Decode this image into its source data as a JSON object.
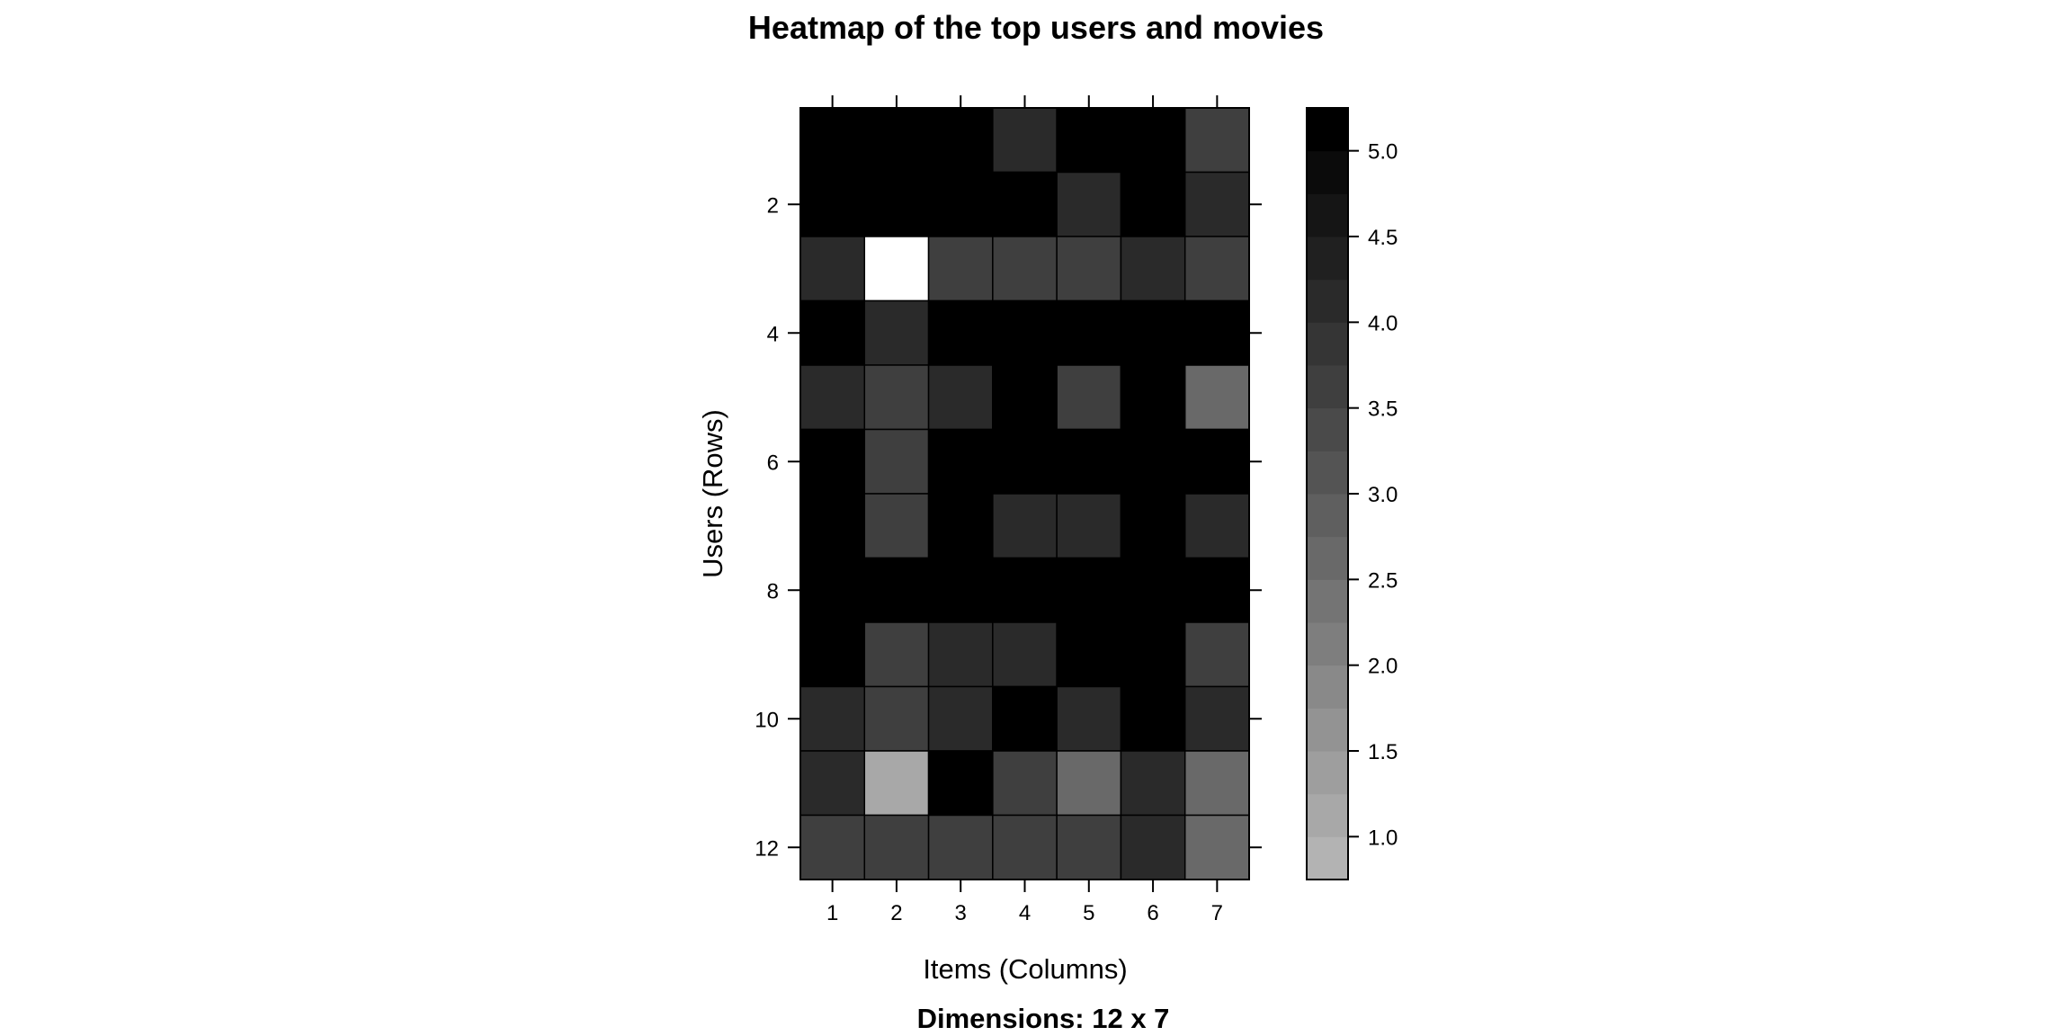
{
  "chart_data": {
    "type": "heatmap",
    "title": "Heatmap of the top users and movies",
    "subtitle": "Dimensions: 12 x 7",
    "xlabel": "Items (Columns)",
    "ylabel": "Users (Rows)",
    "x_ticks": [
      "1",
      "2",
      "3",
      "4",
      "5",
      "6",
      "7"
    ],
    "y_ticks": [
      "2",
      "4",
      "6",
      "8",
      "10",
      "12"
    ],
    "rows": 12,
    "columns": 7,
    "values": [
      [
        5,
        5,
        5,
        4,
        5,
        5,
        3.5
      ],
      [
        5,
        5,
        5,
        5,
        4,
        5,
        4
      ],
      [
        4,
        0.5,
        3.5,
        3.5,
        3.5,
        4,
        3.5
      ],
      [
        5,
        4,
        5,
        5,
        5,
        5,
        5
      ],
      [
        4,
        3.5,
        4,
        5,
        3.5,
        5,
        2.5
      ],
      [
        5,
        3.5,
        5,
        5,
        5,
        5,
        5
      ],
      [
        5,
        3.5,
        5,
        4,
        4,
        5,
        4
      ],
      [
        5,
        5,
        5,
        5,
        5,
        5,
        5
      ],
      [
        5,
        3.5,
        4,
        4,
        5,
        5,
        3.5
      ],
      [
        4,
        3.5,
        4,
        5,
        4,
        5,
        4
      ],
      [
        4,
        1,
        5,
        3.5,
        2.5,
        4,
        2.5
      ],
      [
        3.5,
        3.5,
        3.5,
        3.5,
        3.5,
        4,
        2.5
      ]
    ],
    "colorbar": {
      "ticks": [
        "1.0",
        "1.5",
        "2.0",
        "2.5",
        "3.0",
        "3.5",
        "4.0",
        "4.5",
        "5.0"
      ],
      "range": [
        0.75,
        5.25
      ],
      "levels": 18,
      "low_color": "#b3b3b3",
      "high_color": "#000000"
    }
  }
}
